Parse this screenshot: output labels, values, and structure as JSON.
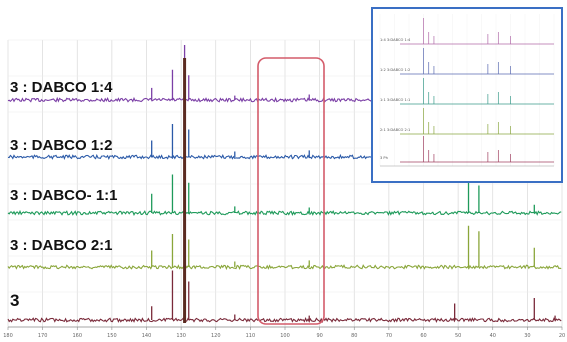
{
  "chart_data": {
    "type": "line",
    "spectrum": "1H NMR stacked spectra",
    "x_tick_labels": [
      "180",
      "170",
      "160",
      "150",
      "140",
      "130",
      "120",
      "110",
      "100",
      "90",
      "80",
      "70",
      "60",
      "50",
      "40",
      "30",
      "20"
    ],
    "xlim": [
      180,
      20
    ],
    "x_reversed": true,
    "grid": true,
    "series": [
      {
        "name": "3 : DABCO 1:4",
        "color": "#7b3fa6",
        "peaks": [
          [
            138.5,
            0.22
          ],
          [
            132.5,
            0.55
          ],
          [
            129,
            1.0
          ],
          [
            127.8,
            0.45
          ],
          [
            114.5,
            0.08
          ],
          [
            93,
            0.1
          ],
          [
            62,
            0.05
          ],
          [
            47,
            0.06
          ],
          [
            28,
            0.05
          ]
        ]
      },
      {
        "name": "3 : DABCO 1:2",
        "color": "#2b5aa8",
        "peaks": [
          [
            138.5,
            0.3
          ],
          [
            132.5,
            0.6
          ],
          [
            129,
            1.0
          ],
          [
            127.8,
            0.5
          ],
          [
            114.5,
            0.1
          ],
          [
            93,
            0.12
          ],
          [
            47,
            0.08
          ],
          [
            28,
            0.06
          ]
        ]
      },
      {
        "name": "3 : DABCO- 1:1",
        "color": "#1e9a5a",
        "peaks": [
          [
            138.5,
            0.35
          ],
          [
            132.5,
            0.7
          ],
          [
            129,
            1.0
          ],
          [
            127.8,
            0.55
          ],
          [
            114.5,
            0.12
          ],
          [
            93,
            0.1
          ],
          [
            47,
            0.6
          ],
          [
            44,
            0.5
          ],
          [
            28,
            0.15
          ]
        ]
      },
      {
        "name": "3 : DABCO 2:1",
        "color": "#8aa63a",
        "peaks": [
          [
            138.5,
            0.3
          ],
          [
            132.5,
            0.6
          ],
          [
            129,
            1.0
          ],
          [
            127.8,
            0.5
          ],
          [
            114.5,
            0.1
          ],
          [
            93,
            0.12
          ],
          [
            47,
            0.75
          ],
          [
            44,
            0.65
          ],
          [
            28,
            0.35
          ]
        ]
      },
      {
        "name": "3",
        "color": "#7a2a3a",
        "peaks": [
          [
            138.5,
            0.25
          ],
          [
            132.5,
            0.9
          ],
          [
            129,
            1.2
          ],
          [
            127.8,
            0.7
          ],
          [
            114.5,
            0.1
          ],
          [
            93,
            0.08
          ],
          [
            51,
            0.3
          ],
          [
            28,
            0.4
          ],
          [
            22,
            0.08
          ]
        ]
      }
    ],
    "inset": {
      "labels": [
        "1:4 3:DABCO 1:4",
        "1:2 3:DABCO 1:2",
        "1:1 3:DABCO 1:1",
        "2:1 3:DABCO 2:1",
        "3 Ph"
      ]
    }
  },
  "colors": {
    "highlight_box": "#d45b6a",
    "inset_border": "#3a6fc4",
    "grid": "#d9d9d9"
  }
}
